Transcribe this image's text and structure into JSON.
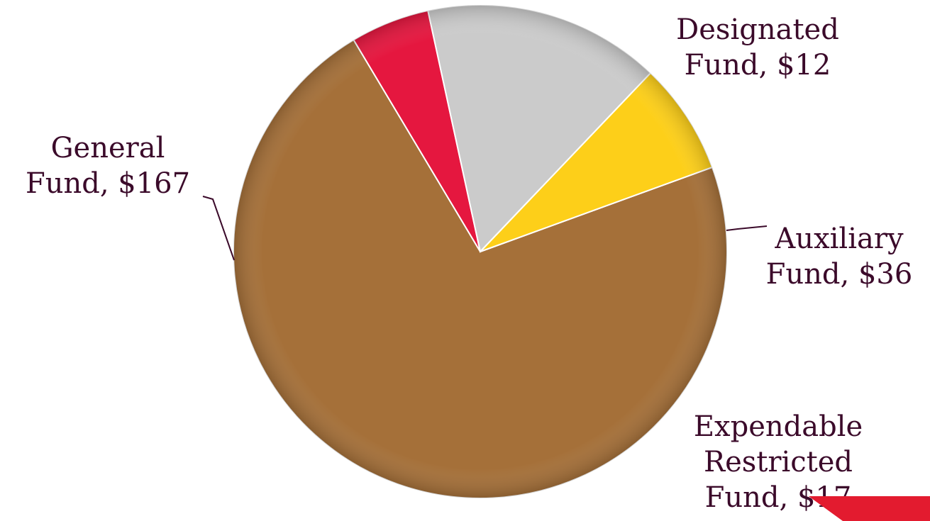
{
  "chart_data": {
    "type": "pie",
    "title": "",
    "slices": [
      {
        "label": "General Fund",
        "value": 167,
        "display": [
          "General",
          "Fund, $167"
        ],
        "color": "#a57039"
      },
      {
        "label": "Designated Fund",
        "value": 12,
        "display": [
          "Designated",
          "Fund, $12"
        ],
        "color": "#e5173f"
      },
      {
        "label": "Auxiliary Fund",
        "value": 36,
        "display": [
          "Auxiliary",
          "Fund, $36"
        ],
        "color": "#cbcbcb"
      },
      {
        "label": "Expendable Restricted Fund",
        "value": 17,
        "display": [
          "Expendable",
          "Restricted",
          "Fund, $17"
        ],
        "color": "#fdcf19"
      }
    ],
    "label_color": "#3b0a2a",
    "leader_color": "#3b0a2a"
  },
  "decor": {
    "accent_color": "#e31b2f"
  }
}
